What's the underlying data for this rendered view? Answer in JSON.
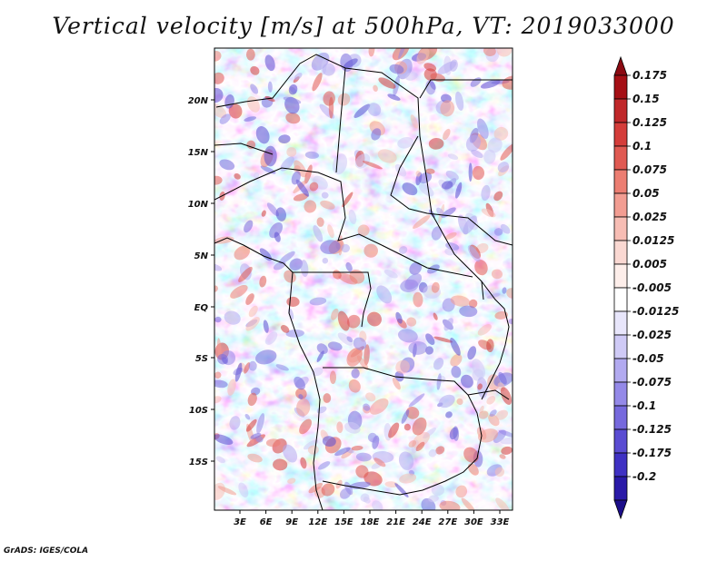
{
  "title": "Vertical velocity [m/s] at 500hPa, VT: 2019033000",
  "credit": "GrADS: IGES/COLA",
  "map": {
    "lat_labels": [
      "20N",
      "15N",
      "10N",
      "5N",
      "EQ",
      "5S",
      "10S",
      "15S"
    ],
    "lon_labels": [
      "3E",
      "6E",
      "9E",
      "12E",
      "15E",
      "18E",
      "21E",
      "24E",
      "27E",
      "30E",
      "33E"
    ]
  },
  "colorbar": {
    "levels": [
      {
        "label": "0.175",
        "color": "#a50f15"
      },
      {
        "label": "0.15",
        "color": "#c0282a"
      },
      {
        "label": "0.125",
        "color": "#d43d3a"
      },
      {
        "label": "0.1",
        "color": "#e05a52"
      },
      {
        "label": "0.075",
        "color": "#ec7e72"
      },
      {
        "label": "0.05",
        "color": "#f29d92"
      },
      {
        "label": "0.025",
        "color": "#f7bdb4"
      },
      {
        "label": "0.0125",
        "color": "#fad8d2"
      },
      {
        "label": "0.005",
        "color": "#fdeeea"
      },
      {
        "label": "-0.005",
        "color": "#ffffff"
      },
      {
        "label": "-0.0125",
        "color": "#e8e6fb"
      },
      {
        "label": "-0.025",
        "color": "#cfcaf6"
      },
      {
        "label": "-0.05",
        "color": "#b2aaf0"
      },
      {
        "label": "-0.075",
        "color": "#9489e8"
      },
      {
        "label": "-0.1",
        "color": "#7669dd"
      },
      {
        "label": "-0.125",
        "color": "#5a4cd2"
      },
      {
        "label": "-0.175",
        "color": "#3f31c3"
      },
      {
        "label": "-0.2",
        "color": "#2a1aa8"
      }
    ],
    "top_color": "#8b0a12",
    "bottom_color": "#1c0e8a"
  }
}
